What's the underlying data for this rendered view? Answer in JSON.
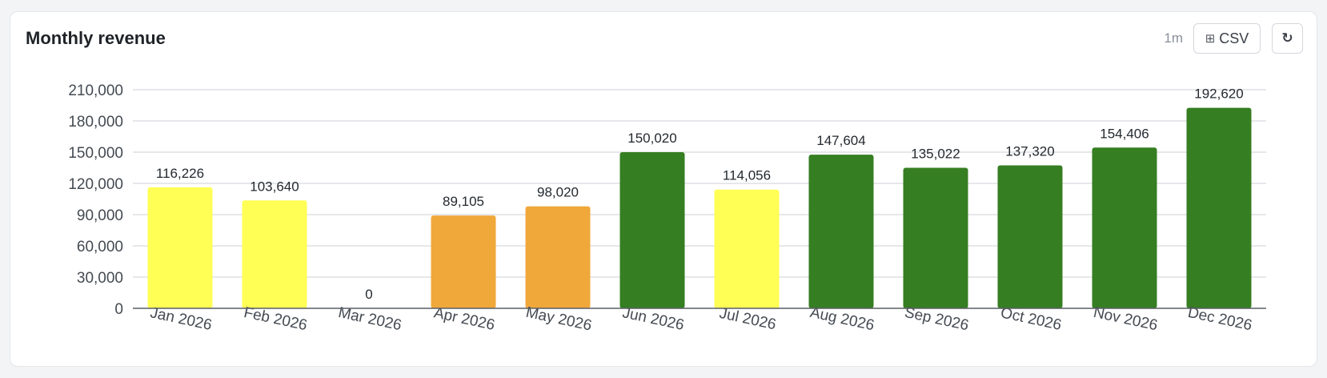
{
  "panel": {
    "title": "Monthly revenue",
    "refresh_rate": "1m",
    "csv_icon": "table-grid-icon",
    "csv_glyph": "⊞",
    "csv_label": "CSV",
    "refresh_icon": "refresh-icon",
    "refresh_glyph": "↻"
  },
  "chart_data": {
    "type": "bar",
    "title": "Monthly revenue",
    "categories": [
      "Jan 2026",
      "Feb 2026",
      "Mar 2026",
      "Apr 2026",
      "May 2026",
      "Jun 2026",
      "Jul 2026",
      "Aug 2026",
      "Sep 2026",
      "Oct 2026",
      "Nov 2026",
      "Dec 2026"
    ],
    "values": [
      116226,
      103640,
      0,
      89105,
      98020,
      150020,
      114056,
      147604,
      135022,
      137320,
      154406,
      192620
    ],
    "value_labels": [
      "116,226",
      "103,640",
      "0",
      "89,105",
      "98,020",
      "150,020",
      "114,056",
      "147,604",
      "135,022",
      "137,320",
      "154,406",
      "192,620"
    ],
    "bar_colors": [
      "#ffff55",
      "#ffff55",
      "#ffff55",
      "#f0a83b",
      "#f0a83b",
      "#367e22",
      "#ffff55",
      "#367e22",
      "#367e22",
      "#367e22",
      "#367e22",
      "#367e22"
    ],
    "ylim": [
      0,
      210000
    ],
    "yticks": [
      0,
      30000,
      60000,
      90000,
      120000,
      150000,
      180000,
      210000
    ],
    "ytick_labels": [
      "0",
      "30,000",
      "60,000",
      "90,000",
      "120,000",
      "150,000",
      "180,000",
      "210,000"
    ],
    "grid": true,
    "xlabel": "",
    "ylabel": ""
  }
}
